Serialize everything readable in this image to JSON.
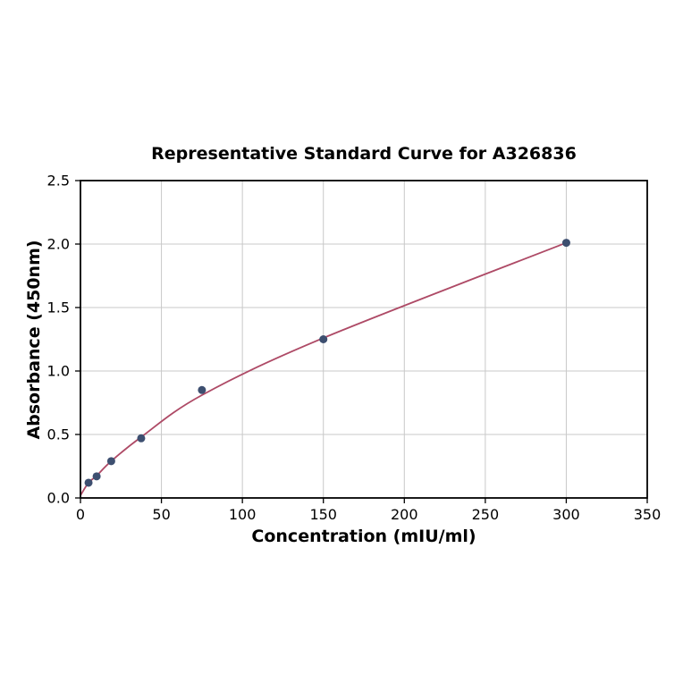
{
  "chart_data": {
    "type": "scatter",
    "title": "Representative Standard Curve for A326836",
    "xlabel": "Concentration (mIU/ml)",
    "ylabel": "Absorbance (450nm)",
    "xlim": [
      0,
      350
    ],
    "ylim": [
      0,
      2.5
    ],
    "x_ticks": [
      0,
      50,
      100,
      150,
      200,
      250,
      300,
      350
    ],
    "x_tick_labels": [
      "0",
      "50",
      "100",
      "150",
      "200",
      "250",
      "300",
      "350"
    ],
    "y_ticks": [
      0.0,
      0.5,
      1.0,
      1.5,
      2.0,
      2.5
    ],
    "y_tick_labels": [
      "0.0",
      "0.5",
      "1.0",
      "1.5",
      "2.0",
      "2.5"
    ],
    "grid": true,
    "legend": "none",
    "points": {
      "x": [
        5,
        10,
        19,
        37.5,
        75,
        150,
        300
      ],
      "y": [
        0.12,
        0.17,
        0.29,
        0.47,
        0.85,
        1.25,
        2.01
      ]
    },
    "fit_curve": {
      "type": "smooth-fit",
      "anchors": [
        [
          0,
          0.02
        ],
        [
          5,
          0.12
        ],
        [
          10,
          0.175
        ],
        [
          19,
          0.29
        ],
        [
          37.5,
          0.48
        ],
        [
          75,
          0.81
        ],
        [
          150,
          1.26
        ],
        [
          300,
          2.01
        ]
      ]
    },
    "colors": {
      "point": "#3d4f70",
      "curve": "#ae4a66",
      "grid": "#c8c8c8",
      "axis": "#000000"
    }
  }
}
